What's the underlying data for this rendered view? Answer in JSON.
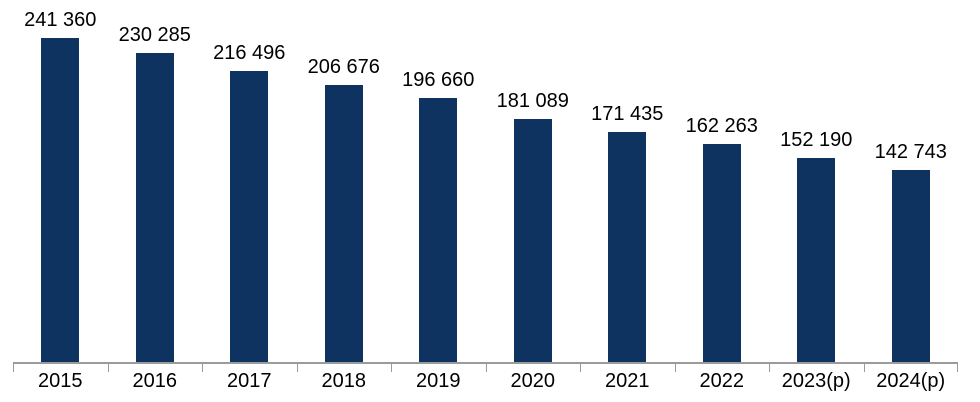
{
  "chart_data": {
    "type": "bar",
    "title": "",
    "xlabel": "",
    "ylabel": "",
    "categories": [
      "2015",
      "2016",
      "2017",
      "2018",
      "2019",
      "2020",
      "2021",
      "2022",
      "2023(p)",
      "2024(p)"
    ],
    "values": [
      241360,
      230285,
      216496,
      206676,
      196660,
      181089,
      171435,
      162263,
      152190,
      142743
    ],
    "value_labels": [
      "241 360",
      "230 285",
      "216 496",
      "206 676",
      "196 660",
      "181 089",
      "171 435",
      "162 263",
      "152 190",
      "142 743"
    ],
    "ylim": [
      0,
      270000
    ],
    "grid": false,
    "legend": false,
    "y_axis_visible": false,
    "data_labels_position": "above-bar",
    "colors": {
      "bar": "#0e3361",
      "axis": "#9b9b9b",
      "text": "#000000",
      "background": "#ffffff"
    }
  }
}
